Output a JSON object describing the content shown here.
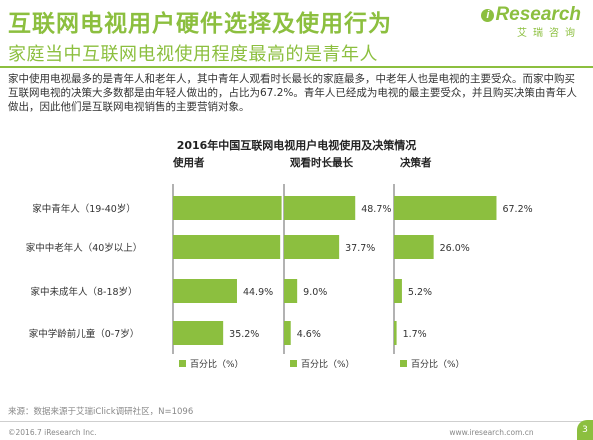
{
  "header": {
    "title": "互联网电视用户硬件选择及使用行为",
    "subtitle": "家庭当中互联网电视使用程度最高的是青年人",
    "brand_name": "Research",
    "brand_i": "i",
    "brand_sub": "艾瑞咨询"
  },
  "description": "家中使用电视最多的是青年人和老年人，其中青年人观看时长最长的家庭最多，中老年人也是电视的主要受众。而家中购买互联网电视的决策大多数都是由年轻人做出的，占比为67.2%。青年人已经成为电视的最主要受众，并且购买决策由青年人做出，因此他们是互联网电视销售的主要营销对象。",
  "chart_data": {
    "type": "bar",
    "orientation": "horizontal",
    "title": "2016年中国互联网电视用户电视使用及决策情况",
    "categories": [
      "家中青年人（19-40岁）",
      "家中中老年人（40岁以上）",
      "家中未成年人（8-18岁）",
      "家中学龄前儿童（0-7岁）"
    ],
    "panels": [
      {
        "name": "使用者",
        "values": [
          76.2,
          75.2,
          44.9,
          35.2
        ],
        "labels": [
          "76.2%",
          "75.2%",
          "44.9%",
          "35.2%"
        ]
      },
      {
        "name": "观看时长最长",
        "values": [
          48.7,
          37.7,
          9.0,
          4.6
        ],
        "labels": [
          "48.7%",
          "37.7%",
          "9.0%",
          "4.6%"
        ]
      },
      {
        "name": "决策者",
        "values": [
          67.2,
          26.0,
          5.2,
          1.7
        ],
        "labels": [
          "67.2%",
          "26.0%",
          "5.2%",
          "1.7%"
        ]
      }
    ],
    "legend": "百分比（%）",
    "legend_placement": "bottom",
    "grid": false,
    "color": "#8cbf3f"
  },
  "footer": {
    "source": "来源：数据来源于艾瑞iClick调研社区，N=1096",
    "copyright": "©2016.7 iResearch Inc.",
    "website": "www.iresearch.com.cn",
    "page": "3"
  }
}
